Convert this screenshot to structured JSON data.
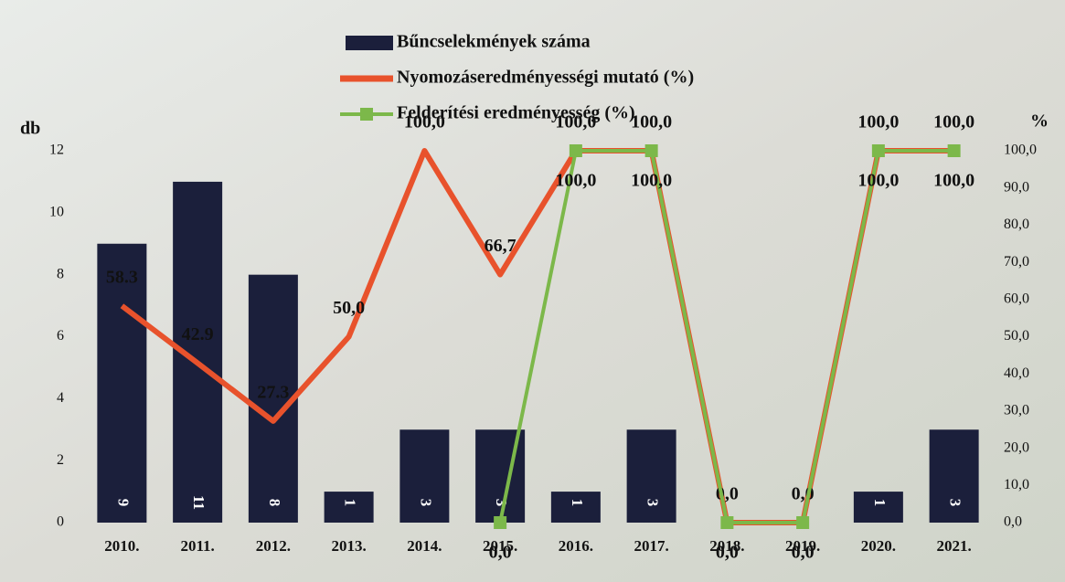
{
  "chart_data": {
    "type": "bar-line",
    "categories": [
      "2010.",
      "2011.",
      "2012.",
      "2013.",
      "2014.",
      "2015.",
      "2016.",
      "2017.",
      "2018.",
      "2019.",
      "2020.",
      "2021."
    ],
    "series": [
      {
        "name": "Bűncselekmények száma",
        "type": "bar",
        "color": "#1b1f3b",
        "values": [
          9,
          11,
          8,
          1,
          3,
          3,
          1,
          3,
          0,
          0,
          1,
          3
        ]
      },
      {
        "name": "Nyomozáseredményességi mutató (%)",
        "type": "line",
        "axis": "y2",
        "color": "#e8522c",
        "values": [
          58.3,
          42.9,
          27.3,
          50.0,
          100.0,
          66.7,
          100.0,
          100.0,
          0.0,
          0.0,
          100.0,
          100.0
        ],
        "value_labels": [
          "58.3",
          "42.9",
          "27.3",
          "50,0",
          "100,0",
          "66,7",
          "100,0",
          "100,0",
          "0,0",
          "0,0",
          "100,0",
          "100,0"
        ]
      },
      {
        "name": "Felderítési eredményesség (%)",
        "type": "line",
        "axis": "y2",
        "color": "#7cb84a",
        "values": [
          null,
          null,
          null,
          null,
          null,
          0.0,
          100.0,
          100.0,
          0.0,
          0.0,
          100.0,
          100.0
        ],
        "value_labels": [
          null,
          null,
          null,
          null,
          null,
          "0,0",
          "100,0",
          "100,0",
          "0,0",
          "0,0",
          "100,0",
          "100,0"
        ]
      }
    ],
    "ylabel": "db",
    "y2label": "%",
    "ylim": [
      0,
      12
    ],
    "yticks": [
      0,
      2,
      4,
      6,
      8,
      10,
      12
    ],
    "y2lim": [
      0,
      100
    ],
    "y2ticks": [
      {
        "value": 0,
        "label": "0,0"
      },
      {
        "value": 10,
        "label": "10,0"
      },
      {
        "value": 20,
        "label": "20,0"
      },
      {
        "value": 30,
        "label": "30,0"
      },
      {
        "value": 40,
        "label": "40,0"
      },
      {
        "value": 50,
        "label": "50,0"
      },
      {
        "value": 60,
        "label": "60,0"
      },
      {
        "value": 70,
        "label": "70,0"
      },
      {
        "value": 80,
        "label": "80,0"
      },
      {
        "value": 90,
        "label": "90,0"
      },
      {
        "value": 100,
        "label": "100,0"
      }
    ],
    "legend": "top"
  }
}
